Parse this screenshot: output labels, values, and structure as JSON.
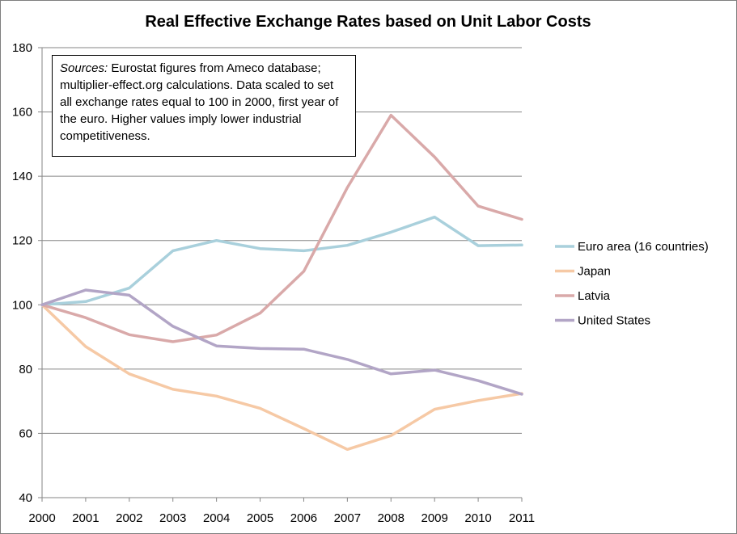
{
  "chart_data": {
    "type": "line",
    "title": "Real Effective Exchange Rates based on Unit Labor Costs",
    "xlabel": "",
    "ylabel": "",
    "x": [
      "2000",
      "2001",
      "2002",
      "2003",
      "2004",
      "2005",
      "2006",
      "2007",
      "2008",
      "2009",
      "2010",
      "2011"
    ],
    "ylim": [
      40,
      180
    ],
    "yticks": [
      "40",
      "60",
      "80",
      "100",
      "120",
      "140",
      "160",
      "180"
    ],
    "grid": "horizontal",
    "legend_position": "right",
    "annotation": {
      "lead": "Sources:",
      "text": " Eurostat figures from Ameco database; multiplier-effect.org calculations. Data scaled to set all exchange rates equal to 100 in 2000, first year of the euro. Higher values imply lower industrial competitiveness."
    },
    "series": [
      {
        "name": "Euro area (16 countries)",
        "color": "#a9d0dc",
        "values": [
          100,
          101,
          105.2,
          116.8,
          120,
          117.5,
          116.8,
          118.5,
          122.6,
          127.3,
          118.4,
          118.6
        ]
      },
      {
        "name": "Japan",
        "color": "#f6c9a5",
        "values": [
          100,
          87,
          78.5,
          73.7,
          71.6,
          67.8,
          61.5,
          55,
          59.3,
          67.5,
          70.2,
          72.4
        ]
      },
      {
        "name": "Latvia",
        "color": "#d9a9a9",
        "values": [
          100,
          96,
          90.7,
          88.5,
          90.6,
          97.4,
          110.4,
          136.5,
          159,
          146,
          130.7,
          126.6
        ]
      },
      {
        "name": "United States",
        "color": "#b2a5c6",
        "values": [
          100,
          104.6,
          103,
          93.3,
          87.2,
          86.4,
          86.2,
          83,
          78.5,
          79.7,
          76.4,
          72.2
        ]
      }
    ]
  }
}
